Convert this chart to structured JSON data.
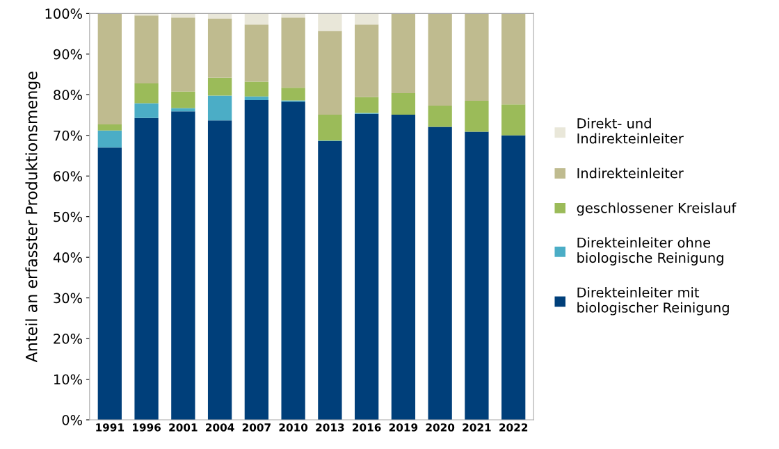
{
  "chart_data": {
    "type": "bar",
    "stacked": true,
    "ylabel": "Anteil an erfasster Produktionsmenge",
    "categories": [
      "1991",
      "1996",
      "2001",
      "2004",
      "2007",
      "2010",
      "2013",
      "2016",
      "2019",
      "2020",
      "2021",
      "2022"
    ],
    "series": [
      {
        "name": "Direkteinleiter mit\nbiologischer Reinigung",
        "color": "#003f7a",
        "values": [
          67,
          74.3,
          75.9,
          73.7,
          78.7,
          78.3,
          68.6,
          75.3,
          75.1,
          72.1,
          70.9,
          70
        ]
      },
      {
        "name": "Direkteinleiter ohne\nbiologische Reinigung",
        "color": "#4badc6",
        "values": [
          4.2,
          3.6,
          0.8,
          6.1,
          0.9,
          0.3,
          0.1,
          0.2,
          0,
          0,
          0,
          0
        ]
      },
      {
        "name": "geschlossener Kreislauf",
        "color": "#9bbb59",
        "values": [
          1.5,
          4.9,
          4.1,
          4.4,
          3.6,
          3.1,
          6.4,
          3.9,
          5.3,
          5.2,
          7.6,
          7.6
        ]
      },
      {
        "name": "Indirekteinleiter",
        "color": "#bfbb8f",
        "values": [
          27.3,
          16.7,
          18.2,
          14.6,
          14.1,
          17.3,
          20.6,
          17.9,
          19.6,
          22.7,
          21.5,
          22.4
        ]
      },
      {
        "name": "Direkt- und\nIndirekteinleiter",
        "color": "#e9e7d9",
        "values": [
          0,
          0.5,
          1.0,
          1.2,
          2.7,
          1.0,
          4.3,
          2.7,
          0,
          0,
          0,
          0
        ]
      }
    ],
    "ylim": [
      0,
      100
    ],
    "yticks": [
      {
        "value": 0,
        "label": "0%"
      },
      {
        "value": 10,
        "label": "10%"
      },
      {
        "value": 20,
        "label": "20%"
      },
      {
        "value": 30,
        "label": "30%"
      },
      {
        "value": 40,
        "label": "40%"
      },
      {
        "value": 50,
        "label": "50%"
      },
      {
        "value": 60,
        "label": "60%"
      },
      {
        "value": 70,
        "label": "70%"
      },
      {
        "value": 80,
        "label": "80%"
      },
      {
        "value": 90,
        "label": "90%"
      },
      {
        "value": 100,
        "label": "100%"
      }
    ],
    "grid": false,
    "legend": "right"
  }
}
